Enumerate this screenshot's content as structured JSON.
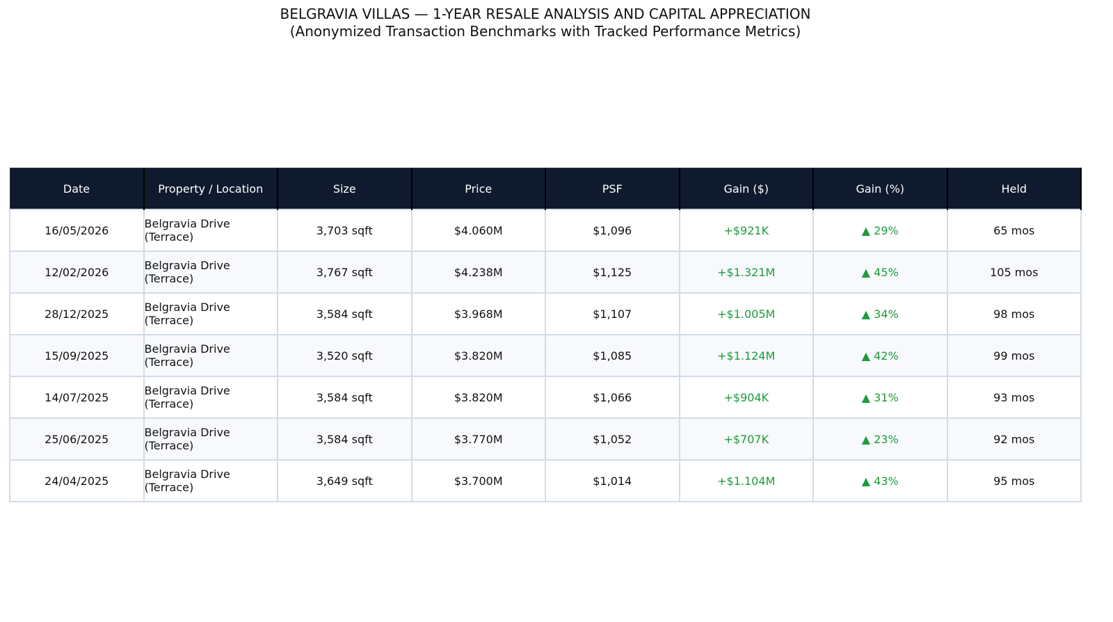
{
  "header": {
    "title": "BELGRAVIA VILLAS — 1-YEAR RESALE ANALYSIS AND CAPITAL APPRECIATION",
    "subtitle": "(Anonymized Transaction Benchmarks with Tracked Performance Metrics)"
  },
  "table": {
    "columns": [
      "Date",
      "Property / Location",
      "Size",
      "Price",
      "PSF",
      "Gain ($)",
      "Gain (%)",
      "Held"
    ],
    "rows": [
      [
        "16/05/2026",
        "Belgravia Drive (Terrace)",
        "3,703 sqft",
        "$4.060M",
        "$1,096",
        "+$921K",
        "▲ 29%",
        "65 mos"
      ],
      [
        "12/02/2026",
        "Belgravia Drive (Terrace)",
        "3,767 sqft",
        "$4.238M",
        "$1,125",
        "+$1.321M",
        "▲ 45%",
        "105 mos"
      ],
      [
        "28/12/2025",
        "Belgravia Drive (Terrace)",
        "3,584 sqft",
        "$3.968M",
        "$1,107",
        "+$1.005M",
        "▲ 34%",
        "98 mos"
      ],
      [
        "15/09/2025",
        "Belgravia Drive (Terrace)",
        "3,520 sqft",
        "$3.820M",
        "$1,085",
        "+$1.124M",
        "▲ 42%",
        "99 mos"
      ],
      [
        "14/07/2025",
        "Belgravia Drive (Terrace)",
        "3,584 sqft",
        "$3.820M",
        "$1,066",
        "+$904K",
        "▲ 31%",
        "93 mos"
      ],
      [
        "25/06/2025",
        "Belgravia Drive (Terrace)",
        "3,584 sqft",
        "$3.770M",
        "$1,052",
        "+$707K",
        "▲ 23%",
        "92 mos"
      ],
      [
        "24/04/2025",
        "Belgravia Drive (Terrace)",
        "3,649 sqft",
        "$3.700M",
        "$1,014",
        "+$1.104M",
        "▲ 43%",
        "95 mos"
      ]
    ]
  }
}
